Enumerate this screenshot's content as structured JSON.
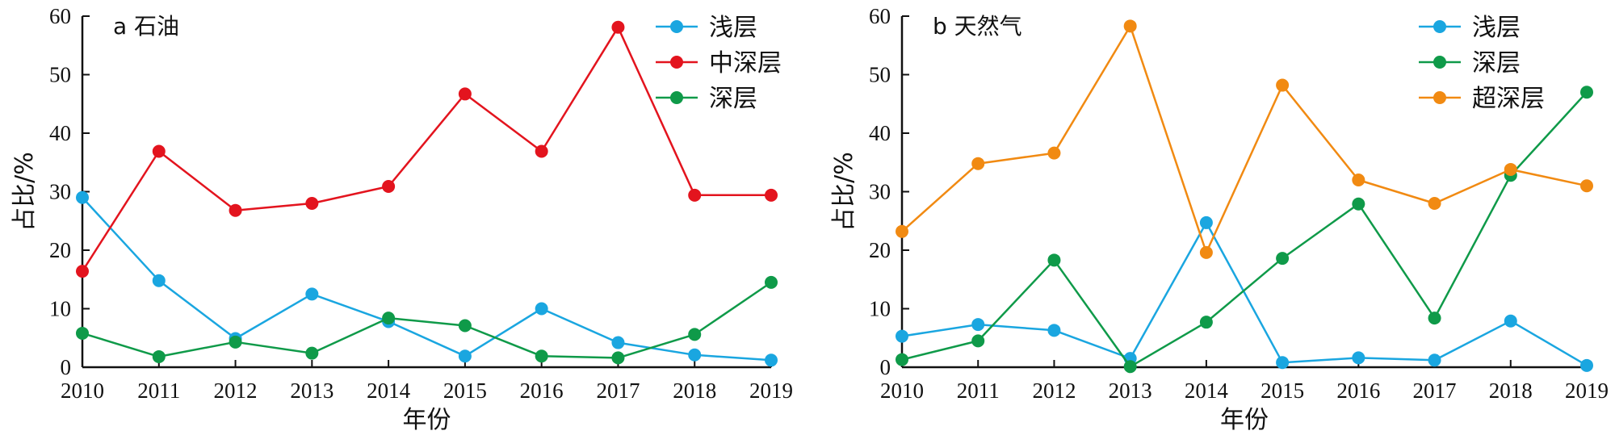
{
  "chart_data": [
    {
      "type": "line",
      "title": "a 石油",
      "xlabel": "年份",
      "ylabel": "占比/%",
      "x": [
        2010,
        2011,
        2012,
        2013,
        2014,
        2015,
        2016,
        2017,
        2018,
        2019
      ],
      "xlim": [
        2010,
        2019
      ],
      "ylim": [
        0,
        60
      ],
      "yticks": [
        0,
        10,
        20,
        30,
        40,
        50,
        60
      ],
      "grid": false,
      "legend_position": "top-right",
      "series": [
        {
          "name": "浅层",
          "color": "#1aa6e0",
          "values": [
            29.0,
            14.8,
            4.9,
            12.5,
            7.8,
            1.9,
            10.0,
            4.2,
            2.1,
            1.2
          ]
        },
        {
          "name": "中深层",
          "color": "#e3141e",
          "values": [
            16.4,
            36.9,
            26.8,
            28.0,
            30.9,
            46.7,
            36.9,
            58.1,
            29.4,
            29.4
          ]
        },
        {
          "name": "深层",
          "color": "#0f9a49",
          "values": [
            5.8,
            1.8,
            4.3,
            2.4,
            8.4,
            7.1,
            1.9,
            1.6,
            5.6,
            14.5
          ]
        }
      ]
    },
    {
      "type": "line",
      "title": "b 天然气",
      "xlabel": "年份",
      "ylabel": "占比/%",
      "x": [
        2010,
        2011,
        2012,
        2013,
        2014,
        2015,
        2016,
        2017,
        2018,
        2019
      ],
      "xlim": [
        2010,
        2019
      ],
      "ylim": [
        0,
        60
      ],
      "yticks": [
        0,
        10,
        20,
        30,
        40,
        50,
        60
      ],
      "grid": false,
      "legend_position": "top-right",
      "series": [
        {
          "name": "浅层",
          "color": "#1aa6e0",
          "values": [
            5.3,
            7.3,
            6.3,
            1.5,
            24.7,
            0.8,
            1.6,
            1.2,
            7.9,
            0.3
          ]
        },
        {
          "name": "深层",
          "color": "#0f9a49",
          "values": [
            1.3,
            4.5,
            18.3,
            0.1,
            7.7,
            18.6,
            27.9,
            8.4,
            32.8,
            47.0
          ]
        },
        {
          "name": "超深层",
          "color": "#f18a12",
          "values": [
            23.2,
            34.8,
            36.6,
            58.3,
            19.6,
            48.2,
            32.0,
            28.0,
            33.8,
            31.0
          ]
        }
      ]
    }
  ]
}
